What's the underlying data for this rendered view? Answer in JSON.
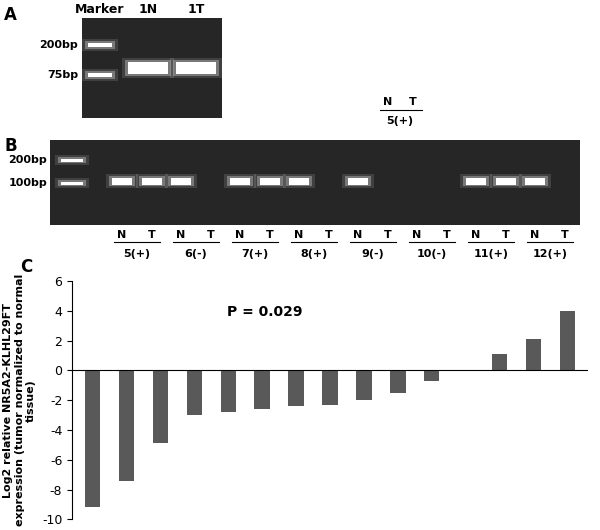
{
  "panel_a": {
    "label": "A",
    "marker_label": "Marker",
    "size_labels": [
      "200bp",
      "75bp"
    ],
    "lanes": [
      {
        "label": "1N",
        "band": true
      },
      {
        "label": "1T",
        "band": true
      }
    ],
    "stray_lanes": [
      "N",
      "T"
    ],
    "stray_group": "5(+)"
  },
  "panel_b": {
    "label": "B",
    "size_labels": [
      "200bp",
      "100bp"
    ],
    "groups": [
      {
        "name": "5(+)",
        "lanes": [
          {
            "label": "N",
            "band": true
          },
          {
            "label": "T",
            "band": true
          }
        ]
      },
      {
        "name": "6(-)",
        "lanes": [
          {
            "label": "N",
            "band": true
          },
          {
            "label": "T",
            "band": false
          }
        ]
      },
      {
        "name": "7(+)",
        "lanes": [
          {
            "label": "N",
            "band": true
          },
          {
            "label": "T",
            "band": true
          }
        ]
      },
      {
        "name": "8(+)",
        "lanes": [
          {
            "label": "N",
            "band": true
          },
          {
            "label": "T",
            "band": false
          }
        ]
      },
      {
        "name": "9(-)",
        "lanes": [
          {
            "label": "N",
            "band": true
          },
          {
            "label": "T",
            "band": false
          }
        ]
      },
      {
        "name": "10(-)",
        "lanes": [
          {
            "label": "N",
            "band": false
          },
          {
            "label": "T",
            "band": false
          }
        ]
      },
      {
        "name": "11(+)",
        "lanes": [
          {
            "label": "N",
            "band": true
          },
          {
            "label": "T",
            "band": true
          }
        ]
      },
      {
        "name": "12(+)",
        "lanes": [
          {
            "label": "N",
            "band": true
          },
          {
            "label": "T",
            "band": false
          }
        ]
      }
    ]
  },
  "chart_data": {
    "type": "bar",
    "title": "C",
    "y_label": "Log2 relative NR5A2-KLHL29FT expression (tumor normalized to normal tissue)",
    "annotations": [
      "P = 0.029"
    ],
    "categories": [
      null,
      null,
      null,
      null,
      null,
      null,
      null,
      null,
      null,
      null,
      null,
      null,
      null,
      null,
      null
    ],
    "values": [
      -9.2,
      -7.4,
      -4.9,
      -3.0,
      -2.8,
      -2.6,
      -2.4,
      -2.3,
      -2.0,
      -1.5,
      -0.7,
      0,
      1.1,
      2.1,
      4.0
    ],
    "color": "#595959",
    "ylim": [
      -10,
      6
    ],
    "yticks": [
      -10,
      -8,
      -6,
      -4,
      -2,
      0,
      2,
      4,
      6
    ],
    "grid": false,
    "tick_labels": "y"
  }
}
